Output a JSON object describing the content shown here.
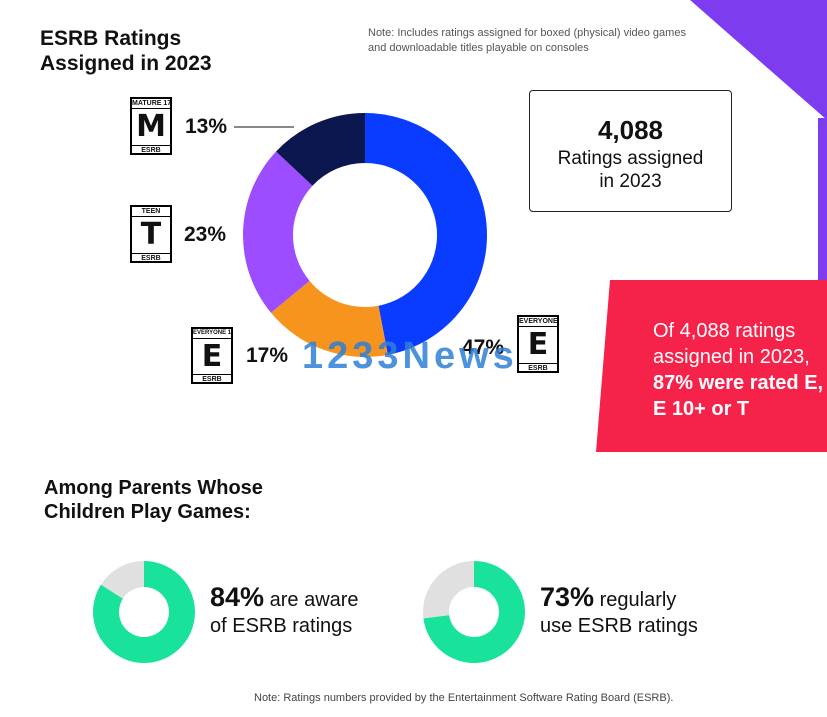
{
  "title": "ESRB Ratings Assigned in 2023",
  "top_note": "Note: Includes ratings assigned for boxed (physical) video games and downloadable titles playable on consoles",
  "stat_box": {
    "number": "4,088",
    "label": "Ratings assigned in 2023"
  },
  "callout": {
    "line1": "Of 4,088 ratings assigned in 2023,",
    "line2": "87% were rated E, E 10+ or T"
  },
  "ratings": [
    {
      "badge_top": "MATURE 17+",
      "badge_letter": "M",
      "badge_bottom": "ESRB",
      "label": "13%"
    },
    {
      "badge_top": "TEEN",
      "badge_letter": "T",
      "badge_bottom": "ESRB",
      "label": "23%"
    },
    {
      "badge_top": "EVERYONE 10+",
      "badge_letter": "E",
      "badge_bottom": "ESRB",
      "label": "17%"
    },
    {
      "badge_top": "EVERYONE",
      "badge_letter": "E",
      "badge_bottom": "ESRB",
      "label": "47%"
    }
  ],
  "section_title": "Among Parents Whose Children Play Games:",
  "parent_stats": [
    {
      "big": "84%",
      "rest1": " are aware",
      "rest2": "of ESRB ratings"
    },
    {
      "big": "73%",
      "rest1": " regularly",
      "rest2": "use ESRB ratings"
    }
  ],
  "bottom_note": "Note: Ratings numbers provided by the Entertainment Software Rating Board (ESRB).",
  "watermark": "1233News",
  "colors": {
    "everyone": "#0a3cff",
    "everyone10": "#f7941d",
    "teen": "#9b4dff",
    "mature": "#0b174e",
    "callout": "#f5224a",
    "purple": "#7d3cf0",
    "green": "#19e39a",
    "grey": "#e0e0e0"
  },
  "chart_data": [
    {
      "type": "pie",
      "title": "ESRB Ratings Assigned in 2023",
      "categories": [
        "Everyone",
        "Everyone 10+",
        "Teen",
        "Mature 17+"
      ],
      "values": [
        47,
        17,
        23,
        13
      ],
      "unit": "%"
    },
    {
      "type": "pie",
      "categories": [
        "Aware",
        "Not aware"
      ],
      "values": [
        84,
        16
      ],
      "unit": "%"
    },
    {
      "type": "pie",
      "categories": [
        "Regularly use",
        "Do not regularly use"
      ],
      "values": [
        73,
        27
      ],
      "unit": "%"
    }
  ]
}
